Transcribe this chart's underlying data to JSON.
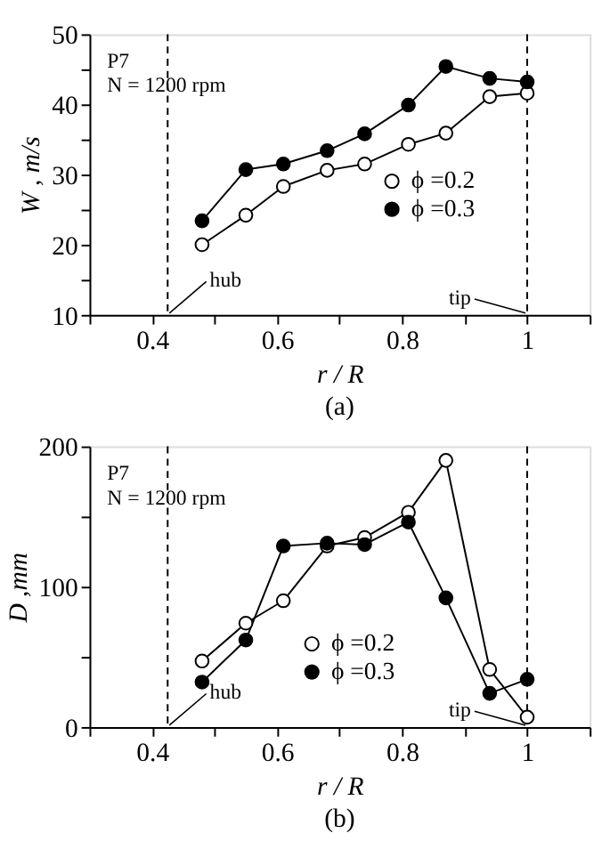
{
  "chart_data": [
    {
      "type": "line",
      "title": "(a)",
      "xlabel": "r / R",
      "ylabel": "W , m/s",
      "x": [
        0.48,
        0.55,
        0.61,
        0.68,
        0.74,
        0.81,
        0.87,
        0.94,
        1.0
      ],
      "series": [
        {
          "name": "ϕ =0.2",
          "color": "#ffffff",
          "values": [
            20.0,
            24.2,
            28.3,
            30.6,
            31.5,
            34.3,
            35.9,
            41.1,
            41.6
          ]
        },
        {
          "name": "ϕ =0.3",
          "color": "#000000",
          "values": [
            23.4,
            30.7,
            31.5,
            33.4,
            35.8,
            39.9,
            45.4,
            43.7,
            43.2
          ]
        }
      ],
      "xlim": [
        0.3,
        1.1
      ],
      "xticks": [
        {
          "value": 0.3,
          "label": null
        },
        0.4,
        {
          "value": 0.5,
          "label": null
        },
        0.6,
        {
          "value": 0.7,
          "label": null
        },
        0.8,
        {
          "value": 0.9,
          "label": null
        },
        1,
        {
          "value": 1.1,
          "label": null
        }
      ],
      "ylim": [
        10,
        50
      ],
      "yticks": [
        10,
        {
          "value": 15,
          "label": null
        },
        20,
        {
          "value": 25,
          "label": null
        },
        30,
        {
          "value": 35,
          "label": null
        },
        40,
        {
          "value": 45,
          "label": null
        },
        50
      ],
      "ref_lines": [
        {
          "axis": "x",
          "value": 0.425,
          "label": "hub",
          "line_style": "dashed"
        },
        {
          "axis": "x",
          "value": 1,
          "label": "tip",
          "line_style": "dashed"
        }
      ],
      "annotations": [
        "P7",
        "N = 1200 rpm"
      ],
      "marker": "circle",
      "legend": "right",
      "grid": false
    },
    {
      "type": "line",
      "title": "(b)",
      "xlabel": "r / R",
      "ylabel": "D ,mm",
      "x": [
        0.48,
        0.55,
        0.61,
        0.68,
        0.74,
        0.81,
        0.87,
        0.94,
        1.0
      ],
      "series": [
        {
          "name": "ϕ =0.2",
          "color": "#ffffff",
          "values": [
            47,
            74,
            90,
            129,
            135,
            153,
            190,
            41,
            7
          ]
        },
        {
          "name": "ϕ =0.3",
          "color": "#000000",
          "values": [
            32,
            62,
            129,
            131,
            130,
            146,
            92,
            24,
            34
          ]
        }
      ],
      "xlim": [
        0.3,
        1.1
      ],
      "xticks": [
        {
          "value": 0.3,
          "label": null
        },
        0.4,
        {
          "value": 0.5,
          "label": null
        },
        0.6,
        {
          "value": 0.7,
          "label": null
        },
        0.8,
        {
          "value": 0.9,
          "label": null
        },
        1,
        {
          "value": 1.1,
          "label": null
        }
      ],
      "ylim": [
        0,
        200
      ],
      "yticks": [
        0,
        {
          "value": 50,
          "label": null
        },
        100,
        {
          "value": 150,
          "label": null
        },
        200
      ],
      "ref_lines": [
        {
          "axis": "x",
          "value": 0.425,
          "label": "hub",
          "line_style": "dashed"
        },
        {
          "axis": "x",
          "value": 1,
          "label": "tip",
          "line_style": "dashed"
        }
      ],
      "annotations": [
        "P7",
        "N = 1200 rpm"
      ],
      "marker": "circle",
      "legend": "bottom",
      "grid": false
    }
  ]
}
